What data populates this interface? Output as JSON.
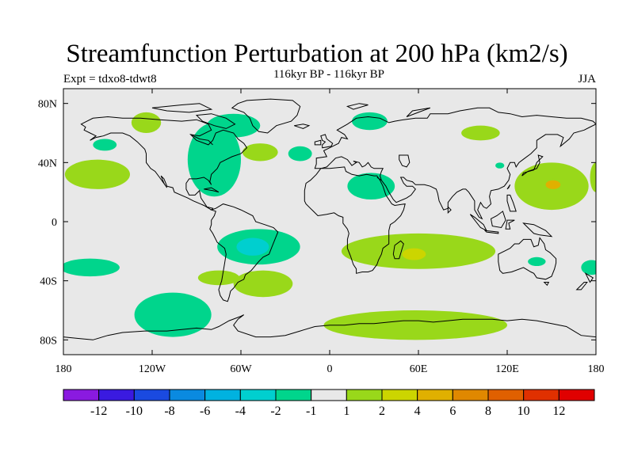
{
  "header": {
    "title": "Streamfunction Perturbation at 200 hPa (km2/s)",
    "subtitle": "116kyr BP - 116kyr BP",
    "left_label": "Expt = tdxo8-tdwt8",
    "right_label": "JJA"
  },
  "map": {
    "projection": "cylindrical-equidistant",
    "lon_range": [
      -180,
      180
    ],
    "lat_range": [
      -90,
      90
    ],
    "ocean_color": "#e8e8e8",
    "coastline_color": "#000000",
    "x_ticks": [
      {
        "lon": -180,
        "label": "180"
      },
      {
        "lon": -120,
        "label": "120W"
      },
      {
        "lon": -60,
        "label": "60W"
      },
      {
        "lon": 0,
        "label": "0"
      },
      {
        "lon": 60,
        "label": "60E"
      },
      {
        "lon": 120,
        "label": "120E"
      },
      {
        "lon": 180,
        "label": "180"
      }
    ],
    "y_ticks": [
      {
        "lat": 80,
        "label": "80N"
      },
      {
        "lat": 40,
        "label": "40N"
      },
      {
        "lat": 0,
        "label": "0"
      },
      {
        "lat": -40,
        "label": "40S"
      },
      {
        "lat": -80,
        "label": "80S"
      }
    ],
    "anomaly_regions": [
      {
        "level": 1,
        "color": "#99d81a",
        "lon": -157,
        "lat": 32,
        "rlon": 22,
        "rlat": 10
      },
      {
        "level": 1,
        "color": "#99d81a",
        "lon": -124,
        "lat": 67,
        "rlon": 10,
        "rlat": 7
      },
      {
        "level": 1,
        "color": "#99d81a",
        "lon": -75,
        "lat": -38,
        "rlon": 14,
        "rlat": 5
      },
      {
        "level": 1,
        "color": "#99d81a",
        "lon": -45,
        "lat": -42,
        "rlon": 20,
        "rlat": 9
      },
      {
        "level": 1,
        "color": "#99d81a",
        "lon": -47,
        "lat": 47,
        "rlon": 12,
        "rlat": 6
      },
      {
        "level": 1,
        "color": "#99d81a",
        "lon": 60,
        "lat": -20,
        "rlon": 52,
        "rlat": 12
      },
      {
        "level": 1,
        "color": "#99d81a",
        "lon": 58,
        "lat": -70,
        "rlon": 62,
        "rlat": 10
      },
      {
        "level": 1,
        "color": "#99d81a",
        "lon": 150,
        "lat": 24,
        "rlon": 25,
        "rlat": 16
      },
      {
        "level": 1,
        "color": "#99d81a",
        "lon": 180,
        "lat": 30,
        "rlon": 4,
        "rlat": 10
      },
      {
        "level": 1,
        "color": "#99d81a",
        "lon": 102,
        "lat": 60,
        "rlon": 13,
        "rlat": 5
      },
      {
        "level": 2,
        "color": "#ccd500",
        "lon": 57,
        "lat": -22,
        "rlon": 8,
        "rlat": 4
      },
      {
        "level": 4,
        "color": "#e0b000",
        "lon": 151,
        "lat": 25,
        "rlon": 5,
        "rlat": 3
      },
      {
        "level": -1,
        "color": "#00d58c",
        "lon": -162,
        "lat": -31,
        "rlon": 20,
        "rlat": 6
      },
      {
        "level": -1,
        "color": "#00d58c",
        "lon": -106,
        "lat": -63,
        "rlon": 26,
        "rlat": 15
      },
      {
        "level": -1,
        "color": "#00d58c",
        "lon": -48,
        "lat": -17,
        "rlon": 28,
        "rlat": 12
      },
      {
        "level": -1,
        "color": "#00d58c",
        "lon": -78,
        "lat": 42,
        "rlon": 18,
        "rlat": 25
      },
      {
        "level": -1,
        "color": "#00d58c",
        "lon": -65,
        "lat": 65,
        "rlon": 18,
        "rlat": 8
      },
      {
        "level": -1,
        "color": "#00d58c",
        "lon": -152,
        "lat": 52,
        "rlon": 8,
        "rlat": 4
      },
      {
        "level": -1,
        "color": "#00d58c",
        "lon": -20,
        "lat": 46,
        "rlon": 8,
        "rlat": 5
      },
      {
        "level": -1,
        "color": "#00d58c",
        "lon": 28,
        "lat": 24,
        "rlon": 16,
        "rlat": 9
      },
      {
        "level": -1,
        "color": "#00d58c",
        "lon": 27,
        "lat": 68,
        "rlon": 12,
        "rlat": 6
      },
      {
        "level": -1,
        "color": "#00d58c",
        "lon": 115,
        "lat": 38,
        "rlon": 3,
        "rlat": 2
      },
      {
        "level": -1,
        "color": "#00d58c",
        "lon": 140,
        "lat": -27,
        "rlon": 6,
        "rlat": 3
      },
      {
        "level": -1,
        "color": "#00d58c",
        "lon": 177,
        "lat": -31,
        "rlon": 7,
        "rlat": 5
      },
      {
        "level": -2,
        "color": "#00cfcf",
        "lon": -52,
        "lat": -17,
        "rlon": 11,
        "rlat": 6
      }
    ]
  },
  "colorbar": {
    "colors": [
      "#8a1ae0",
      "#3a1ae0",
      "#1a4ae0",
      "#0a8ae0",
      "#00b2e0",
      "#00cfcf",
      "#00d58c",
      "#e8e8e8",
      "#99d81a",
      "#ccd500",
      "#e0b000",
      "#e08800",
      "#e06000",
      "#e03000",
      "#e00000"
    ],
    "labels": [
      "-12",
      "-10",
      "-8",
      "-6",
      "-4",
      "-2",
      "-1",
      "1",
      "2",
      "4",
      "6",
      "8",
      "10",
      "12"
    ]
  }
}
